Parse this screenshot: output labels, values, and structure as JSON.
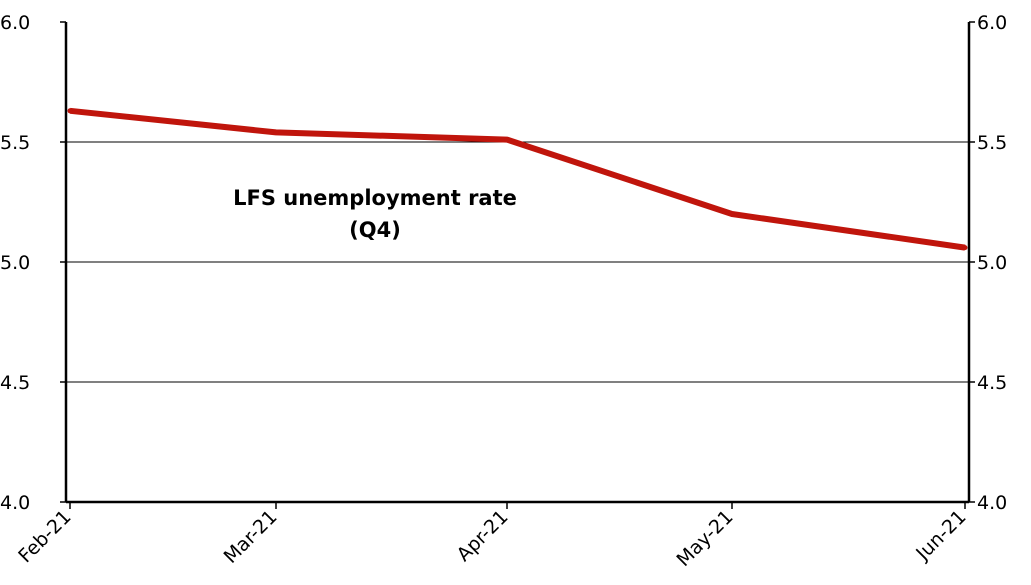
{
  "chart_data": {
    "type": "line",
    "title": "",
    "xlabel": "",
    "ylabel": "",
    "x": [
      "Feb-21",
      "Mar-21",
      "Apr-21",
      "May-21",
      "Jun-21"
    ],
    "ylim": [
      4.0,
      6.0
    ],
    "yticks": [
      "4.0",
      "4.5",
      "5.0",
      "5.5",
      "6.0"
    ],
    "secondary_axis_mirrors_primary": true,
    "grid": "horizontal",
    "series": [
      {
        "name": "",
        "color": "#c0150c",
        "points": [
          {
            "x": "Feb-21",
            "y": 5.63
          },
          {
            "x": "Mar-21",
            "y": 5.54
          },
          {
            "x": "Apr-21",
            "y": 5.51
          },
          {
            "x": "May-21",
            "y": 5.2
          },
          {
            "x": "Jun-21",
            "y": 5.06
          }
        ]
      }
    ],
    "annotation": {
      "line1": "LFS unemployment rate",
      "line2": "(Q4)"
    }
  }
}
